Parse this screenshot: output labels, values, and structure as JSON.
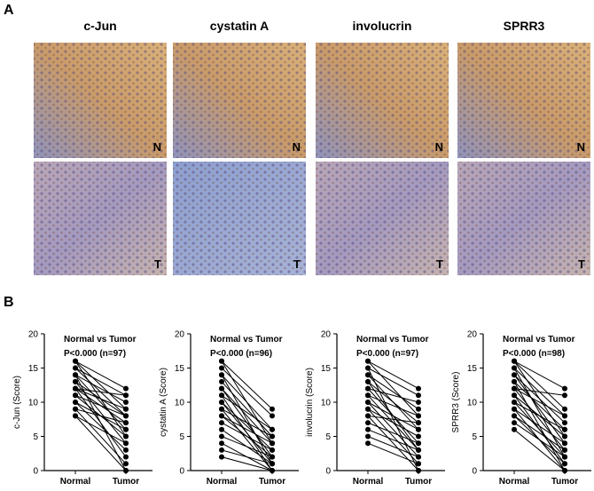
{
  "panel_a": {
    "label": "A",
    "columns": [
      "c-Jun",
      "cystatin A",
      "involucrin",
      "SPRR3"
    ],
    "row_labels": [
      "N",
      "T"
    ]
  },
  "panel_b": {
    "label": "B"
  },
  "chart_data": [
    {
      "type": "paired",
      "categories": [
        "Normal",
        "Tumor"
      ],
      "ylabel": "c-Jun (Score)",
      "annotation": "Normal vs Tumor",
      "stat": "P<0.000 (n=97)",
      "ylim": [
        0,
        20
      ],
      "yticks": [
        0,
        5,
        10,
        15,
        20
      ],
      "color": "#000000",
      "pairs": [
        [
          16,
          12
        ],
        [
          16,
          9
        ],
        [
          15,
          11
        ],
        [
          15,
          8
        ],
        [
          14,
          10
        ],
        [
          14,
          6
        ],
        [
          13,
          8
        ],
        [
          13,
          4
        ],
        [
          12,
          9
        ],
        [
          12,
          7
        ],
        [
          12,
          2
        ],
        [
          11,
          8
        ],
        [
          11,
          5
        ],
        [
          10,
          6
        ],
        [
          10,
          3
        ],
        [
          9,
          7
        ],
        [
          9,
          1
        ],
        [
          8,
          4
        ],
        [
          8,
          0
        ],
        [
          14,
          0
        ],
        [
          12,
          11
        ],
        [
          16,
          5
        ]
      ]
    },
    {
      "type": "paired",
      "categories": [
        "Normal",
        "Tumor"
      ],
      "ylabel": "cystatin A (Score)",
      "annotation": "Normal vs Tumor",
      "stat": "P<0.000 (n=96)",
      "ylim": [
        0,
        20
      ],
      "yticks": [
        0,
        5,
        10,
        15,
        20
      ],
      "color": "#000000",
      "pairs": [
        [
          16,
          9
        ],
        [
          15,
          8
        ],
        [
          14,
          6
        ],
        [
          13,
          5
        ],
        [
          12,
          4
        ],
        [
          12,
          2
        ],
        [
          11,
          6
        ],
        [
          10,
          3
        ],
        [
          10,
          1
        ],
        [
          9,
          5
        ],
        [
          9,
          0
        ],
        [
          8,
          4
        ],
        [
          8,
          2
        ],
        [
          7,
          3
        ],
        [
          6,
          1
        ],
        [
          5,
          2
        ],
        [
          4,
          0
        ],
        [
          3,
          1
        ],
        [
          2,
          0
        ],
        [
          14,
          1
        ],
        [
          11,
          0
        ],
        [
          16,
          4
        ]
      ]
    },
    {
      "type": "paired",
      "categories": [
        "Normal",
        "Tumor"
      ],
      "ylabel": "involucrin (Score)",
      "annotation": "Normal vs Tumor",
      "stat": "P<0.000 (n=97)",
      "ylim": [
        0,
        20
      ],
      "yticks": [
        0,
        5,
        10,
        15,
        20
      ],
      "color": "#000000",
      "pairs": [
        [
          16,
          12
        ],
        [
          16,
          8
        ],
        [
          15,
          11
        ],
        [
          14,
          9
        ],
        [
          14,
          6
        ],
        [
          13,
          7
        ],
        [
          12,
          10
        ],
        [
          12,
          4
        ],
        [
          11,
          8
        ],
        [
          11,
          3
        ],
        [
          10,
          6
        ],
        [
          10,
          2
        ],
        [
          9,
          5
        ],
        [
          9,
          1
        ],
        [
          8,
          7
        ],
        [
          8,
          0
        ],
        [
          7,
          4
        ],
        [
          6,
          3
        ],
        [
          5,
          2
        ],
        [
          4,
          1
        ],
        [
          15,
          0
        ],
        [
          13,
          3
        ]
      ]
    },
    {
      "type": "paired",
      "categories": [
        "Normal",
        "Tumor"
      ],
      "ylabel": "SPRR3 (Score)",
      "annotation": "Normal vs Tumor",
      "stat": "P<0.000 (n=98)",
      "ylim": [
        0,
        20
      ],
      "yticks": [
        0,
        5,
        10,
        15,
        20
      ],
      "color": "#000000",
      "pairs": [
        [
          16,
          12
        ],
        [
          16,
          9
        ],
        [
          15,
          8
        ],
        [
          14,
          7
        ],
        [
          14,
          4
        ],
        [
          13,
          6
        ],
        [
          12,
          8
        ],
        [
          12,
          3
        ],
        [
          11,
          5
        ],
        [
          11,
          1
        ],
        [
          10,
          6
        ],
        [
          10,
          2
        ],
        [
          9,
          4
        ],
        [
          9,
          0
        ],
        [
          8,
          3
        ],
        [
          8,
          1
        ],
        [
          7,
          2
        ],
        [
          6,
          0
        ],
        [
          15,
          2
        ],
        [
          13,
          0
        ],
        [
          12,
          11
        ],
        [
          16,
          5
        ]
      ]
    }
  ]
}
